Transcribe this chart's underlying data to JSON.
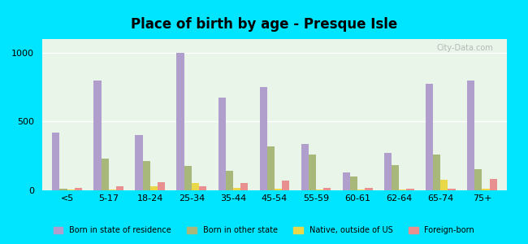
{
  "title": "Place of birth by age - Presque Isle",
  "categories": [
    "<5",
    "5-17",
    "18-24",
    "25-34",
    "35-44",
    "45-54",
    "55-59",
    "60-61",
    "62-64",
    "65-74",
    "75+"
  ],
  "series": {
    "Born in state of residence": [
      420,
      800,
      400,
      1000,
      675,
      750,
      340,
      130,
      275,
      775,
      800
    ],
    "Born in other state": [
      10,
      230,
      210,
      175,
      140,
      320,
      260,
      100,
      185,
      260,
      155
    ],
    "Native, outside of US": [
      5,
      5,
      30,
      55,
      20,
      10,
      5,
      5,
      5,
      75,
      10
    ],
    "Foreign-born": [
      15,
      30,
      60,
      30,
      55,
      70,
      15,
      20,
      10,
      10,
      80
    ]
  },
  "colors": {
    "Born in state of residence": "#b09fcc",
    "Born in other state": "#a8b87a",
    "Native, outside of US": "#e8d84a",
    "Foreign-born": "#e89090"
  },
  "ylim": [
    0,
    1100
  ],
  "yticks": [
    0,
    500,
    1000
  ],
  "background_top": "#e8f5e8",
  "background_bottom": "#f0fff0",
  "outer_background": "#00e5ff",
  "bar_width": 0.18,
  "figsize": [
    6.5,
    3.0
  ],
  "dpi": 100
}
